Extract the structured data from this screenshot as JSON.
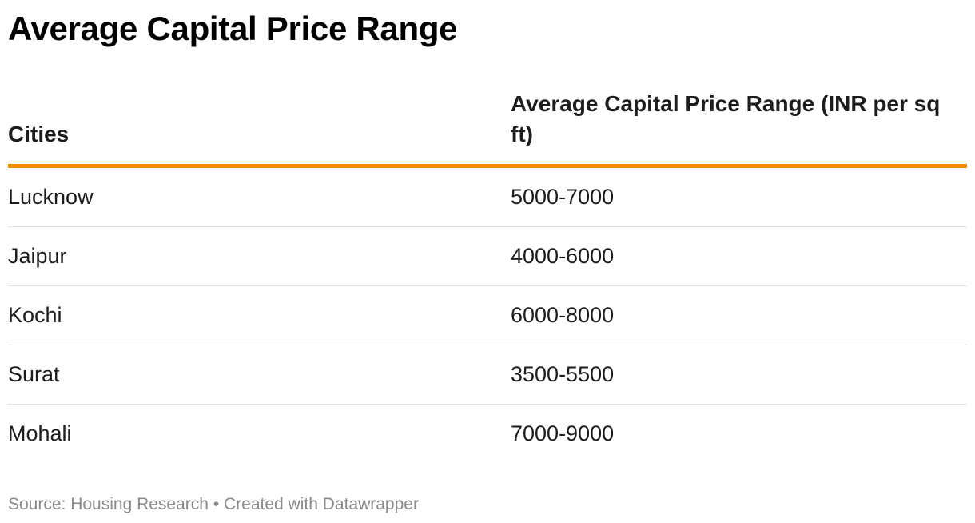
{
  "chart_data": {
    "type": "table",
    "title": "Average Capital Price Range",
    "columns": [
      "Cities",
      "Average Capital Price Range (INR per sq ft)"
    ],
    "rows": [
      {
        "city": "Lucknow",
        "range": "5000-7000"
      },
      {
        "city": "Jaipur",
        "range": "4000-6000"
      },
      {
        "city": "Kochi",
        "range": "6000-8000"
      },
      {
        "city": "Surat",
        "range": "3500-5500"
      },
      {
        "city": "Mohali",
        "range": "7000-9000"
      }
    ],
    "source": "Source: Housing Research",
    "credit": "Created with Datawrapper",
    "separator": "•"
  },
  "colors": {
    "header_rule": "#f08c00",
    "row_divider": "#e2e2e2",
    "footer_text": "#8a8a8a"
  }
}
